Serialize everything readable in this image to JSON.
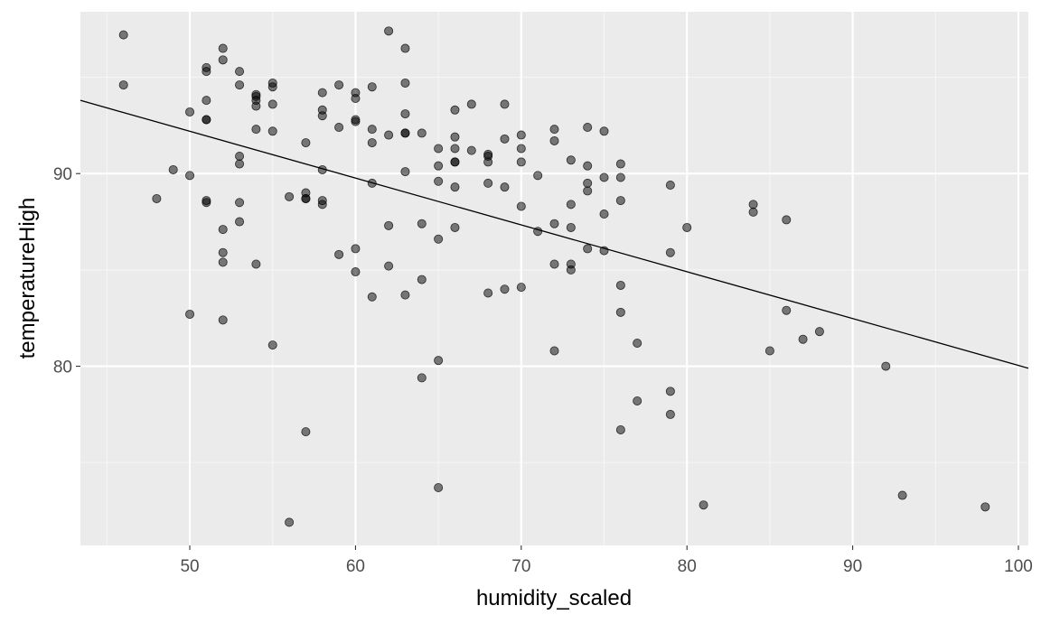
{
  "chart_data": {
    "type": "scatter",
    "xlabel": "humidity_scaled",
    "ylabel": "temperatureHigh",
    "xlim": [
      43.4,
      100.6
    ],
    "ylim": [
      70.7,
      98.4
    ],
    "x_ticks": [
      50,
      60,
      70,
      80,
      90,
      100
    ],
    "y_ticks": [
      80,
      90
    ],
    "x_tick_labels": [
      "50",
      "60",
      "70",
      "80",
      "90",
      "100"
    ],
    "y_tick_labels": [
      "80",
      "90"
    ],
    "grid": true,
    "colors": {
      "panel_background": "#ebebeb",
      "grid_major": "#ffffff",
      "grid_minor": "#f5f5f5",
      "point_fill": "#000000",
      "point_opacity": 0.5,
      "trend_line": "#000000"
    },
    "trend_line": {
      "x": [
        43.4,
        100.6
      ],
      "y": [
        93.8,
        79.9
      ]
    },
    "points": [
      [
        46,
        97.2
      ],
      [
        46,
        94.6
      ],
      [
        48,
        88.7
      ],
      [
        49,
        90.2
      ],
      [
        50,
        93.2
      ],
      [
        50,
        89.9
      ],
      [
        50,
        82.7
      ],
      [
        51,
        95.5
      ],
      [
        51,
        95.3
      ],
      [
        51,
        93.8
      ],
      [
        51,
        92.8
      ],
      [
        51,
        92.8
      ],
      [
        51,
        88.6
      ],
      [
        51,
        88.5
      ],
      [
        52,
        96.5
      ],
      [
        52,
        95.9
      ],
      [
        52,
        87.1
      ],
      [
        52,
        85.9
      ],
      [
        52,
        85.4
      ],
      [
        52,
        82.4
      ],
      [
        53,
        95.3
      ],
      [
        53,
        94.6
      ],
      [
        53,
        90.9
      ],
      [
        53,
        90.5
      ],
      [
        53,
        88.5
      ],
      [
        53,
        87.5
      ],
      [
        54,
        94.1
      ],
      [
        54,
        94.0
      ],
      [
        54,
        93.8
      ],
      [
        54,
        93.5
      ],
      [
        54,
        92.3
      ],
      [
        54,
        85.3
      ],
      [
        55,
        94.7
      ],
      [
        55,
        94.5
      ],
      [
        55,
        93.6
      ],
      [
        55,
        92.2
      ],
      [
        55,
        81.1
      ],
      [
        56,
        88.8
      ],
      [
        56,
        71.9
      ],
      [
        57,
        91.6
      ],
      [
        57,
        89.0
      ],
      [
        57,
        88.7
      ],
      [
        57,
        88.7
      ],
      [
        57,
        76.6
      ],
      [
        58,
        94.2
      ],
      [
        58,
        93.3
      ],
      [
        58,
        93.0
      ],
      [
        58,
        90.2
      ],
      [
        58,
        88.6
      ],
      [
        58,
        88.4
      ],
      [
        59,
        94.6
      ],
      [
        59,
        92.4
      ],
      [
        59,
        85.8
      ],
      [
        60,
        94.2
      ],
      [
        60,
        93.9
      ],
      [
        60,
        92.8
      ],
      [
        60,
        92.7
      ],
      [
        60,
        86.1
      ],
      [
        60,
        84.9
      ],
      [
        61,
        94.5
      ],
      [
        61,
        92.3
      ],
      [
        61,
        91.6
      ],
      [
        61,
        89.5
      ],
      [
        61,
        83.6
      ],
      [
        62,
        97.4
      ],
      [
        62,
        92.0
      ],
      [
        62,
        87.3
      ],
      [
        62,
        85.2
      ],
      [
        63,
        96.5
      ],
      [
        63,
        94.7
      ],
      [
        63,
        93.1
      ],
      [
        63,
        92.1
      ],
      [
        63,
        92.1
      ],
      [
        63,
        90.1
      ],
      [
        63,
        83.7
      ],
      [
        64,
        92.1
      ],
      [
        64,
        87.4
      ],
      [
        64,
        84.5
      ],
      [
        64,
        79.4
      ],
      [
        65,
        91.3
      ],
      [
        65,
        90.4
      ],
      [
        65,
        89.6
      ],
      [
        65,
        86.6
      ],
      [
        65,
        80.3
      ],
      [
        65,
        73.7
      ],
      [
        66,
        93.3
      ],
      [
        66,
        91.9
      ],
      [
        66,
        91.3
      ],
      [
        66,
        90.6
      ],
      [
        66,
        90.6
      ],
      [
        66,
        89.3
      ],
      [
        66,
        87.2
      ],
      [
        67,
        93.6
      ],
      [
        67,
        91.2
      ],
      [
        68,
        91.0
      ],
      [
        68,
        90.9
      ],
      [
        68,
        90.6
      ],
      [
        68,
        89.5
      ],
      [
        68,
        83.8
      ],
      [
        69,
        93.6
      ],
      [
        69,
        91.8
      ],
      [
        69,
        89.3
      ],
      [
        69,
        84.0
      ],
      [
        70,
        92.0
      ],
      [
        70,
        91.3
      ],
      [
        70,
        90.6
      ],
      [
        70,
        88.3
      ],
      [
        70,
        84.1
      ],
      [
        71,
        89.9
      ],
      [
        71,
        87.0
      ],
      [
        72,
        92.3
      ],
      [
        72,
        91.7
      ],
      [
        72,
        87.4
      ],
      [
        72,
        85.3
      ],
      [
        72,
        80.8
      ],
      [
        73,
        90.7
      ],
      [
        73,
        88.4
      ],
      [
        73,
        87.2
      ],
      [
        73,
        85.3
      ],
      [
        73,
        85.0
      ],
      [
        74,
        92.4
      ],
      [
        74,
        90.4
      ],
      [
        74,
        89.5
      ],
      [
        74,
        89.1
      ],
      [
        74,
        86.1
      ],
      [
        75,
        92.2
      ],
      [
        75,
        89.8
      ],
      [
        75,
        87.9
      ],
      [
        75,
        86.0
      ],
      [
        76,
        90.5
      ],
      [
        76,
        89.8
      ],
      [
        76,
        88.6
      ],
      [
        76,
        84.2
      ],
      [
        76,
        82.8
      ],
      [
        76,
        76.7
      ],
      [
        77,
        81.2
      ],
      [
        77,
        78.2
      ],
      [
        79,
        89.4
      ],
      [
        79,
        85.9
      ],
      [
        79,
        78.7
      ],
      [
        79,
        77.5
      ],
      [
        80,
        87.2
      ],
      [
        81,
        72.8
      ],
      [
        84,
        88.4
      ],
      [
        84,
        88.0
      ],
      [
        85,
        80.8
      ],
      [
        86,
        87.6
      ],
      [
        86,
        82.9
      ],
      [
        87,
        81.4
      ],
      [
        88,
        81.8
      ],
      [
        92,
        80.0
      ],
      [
        93,
        73.3
      ],
      [
        98,
        72.7
      ]
    ]
  }
}
